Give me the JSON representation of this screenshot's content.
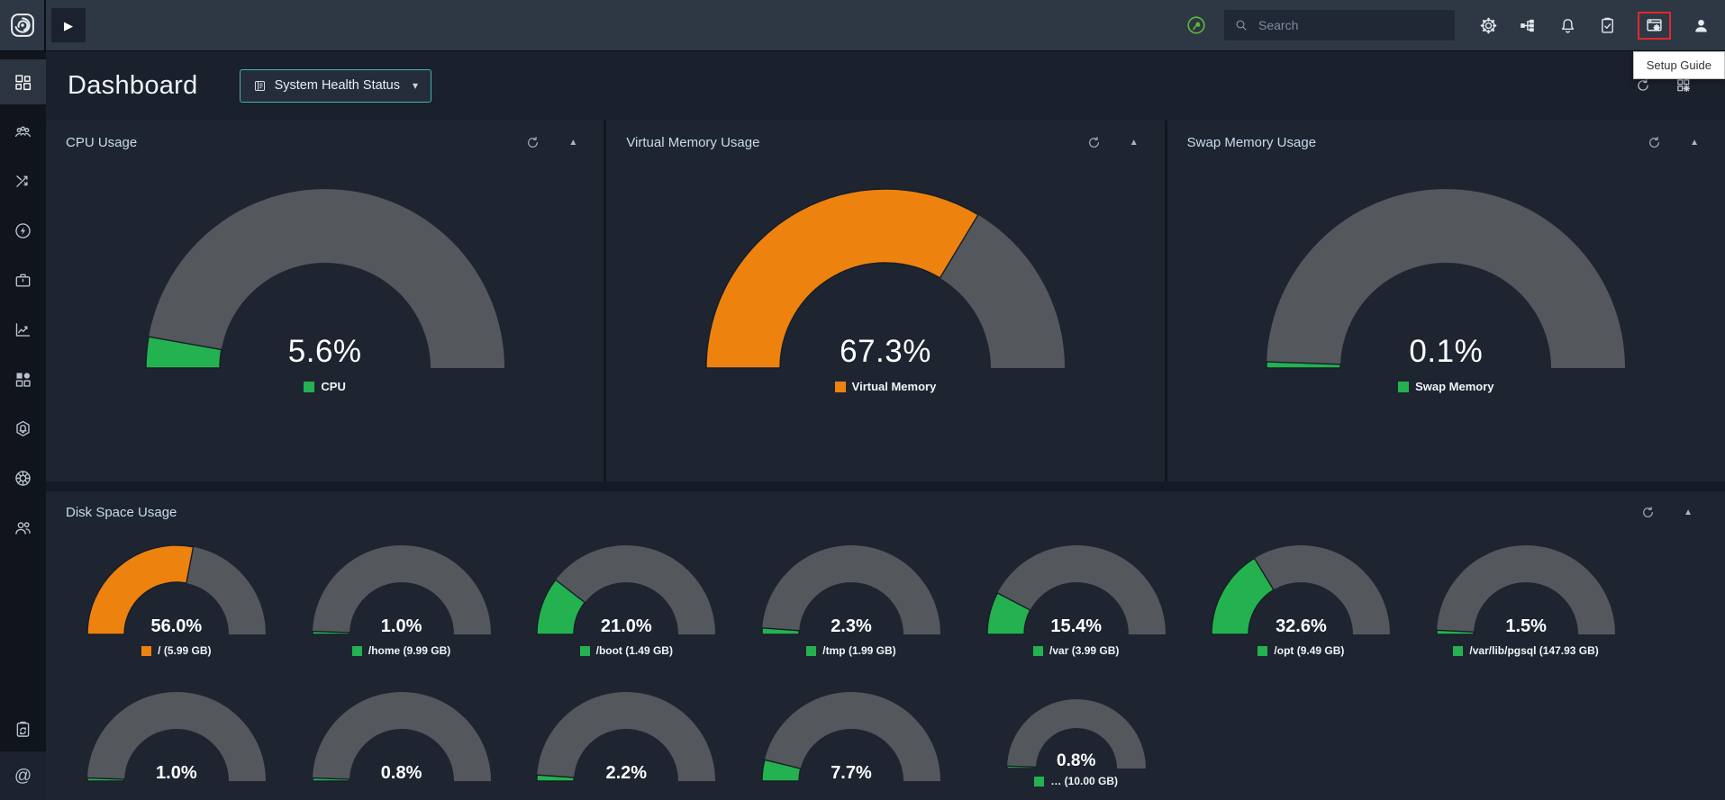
{
  "colors": {
    "green": "#23b24f",
    "orange": "#ed820f",
    "track": "#54575c",
    "accent_teal": "#3eb7b1",
    "highlight_red": "#e3282c"
  },
  "topbar": {
    "logo_icon": "logo-icon",
    "play_icon": "play-icon",
    "eco_icon": "eco-icon",
    "search": {
      "icon": "search-icon",
      "placeholder": "Search",
      "value": ""
    },
    "icons": [
      {
        "name": "settings",
        "icon": "settings-gear-icon"
      },
      {
        "name": "infrastructure",
        "icon": "hierarchy-icon"
      },
      {
        "name": "notifications",
        "icon": "notifications-bell-icon"
      },
      {
        "name": "tasks",
        "icon": "tasks-icon"
      },
      {
        "name": "setup-guide",
        "icon": "setup-guide-icon",
        "highlighted": true
      },
      {
        "name": "user",
        "icon": "user-icon"
      }
    ],
    "tooltip": "Setup Guide"
  },
  "sidebar": {
    "items": [
      {
        "name": "dashboard",
        "icon": "grid-dashboard-icon",
        "active": true
      },
      {
        "name": "monitor-groups",
        "icon": "team-icon"
      },
      {
        "name": "integrations",
        "icon": "shuffle-icon"
      },
      {
        "name": "alarms",
        "icon": "lightning-icon"
      },
      {
        "name": "business-view",
        "icon": "briefcase-icon"
      },
      {
        "name": "reports",
        "icon": "line-chart-icon"
      },
      {
        "name": "widgets",
        "icon": "widgets-icon"
      },
      {
        "name": "alarm-settings",
        "icon": "hexagon-bell-icon"
      },
      {
        "name": "admin",
        "icon": "wheel-icon"
      },
      {
        "name": "user-management",
        "icon": "users-icon"
      }
    ],
    "bottom_items": [
      {
        "name": "audit",
        "icon": "clipboard-sync-icon"
      },
      {
        "name": "support",
        "icon": "at-icon"
      }
    ]
  },
  "header": {
    "title": "Dashboard",
    "view_selector": {
      "icon": "view-icon",
      "label": "System Health Status",
      "caret": "caret-down-icon"
    },
    "actions": [
      {
        "name": "refresh",
        "icon": "refresh-icon"
      },
      {
        "name": "customize-dashboard",
        "icon": "customize-icon"
      }
    ]
  },
  "panels": [
    {
      "title": "CPU Usage",
      "actions": [
        "refresh-icon",
        "collapse-icon"
      ],
      "gauge": {
        "value": "5.6%",
        "pct": 5.6,
        "color": "#23b24f",
        "label": "CPU"
      }
    },
    {
      "title": "Virtual Memory Usage",
      "actions": [
        "refresh-icon",
        "collapse-icon"
      ],
      "gauge": {
        "value": "67.3%",
        "pct": 67.3,
        "color": "#ed820f",
        "label": "Virtual Memory"
      }
    },
    {
      "title": "Swap Memory Usage",
      "actions": [
        "refresh-icon",
        "collapse-icon"
      ],
      "gauge": {
        "value": "0.1%",
        "pct": 0.1,
        "color": "#23b24f",
        "label": "Swap Memory"
      }
    }
  ],
  "disk_panel": {
    "title": "Disk Space Usage",
    "actions": [
      "refresh-icon",
      "collapse-icon"
    ],
    "row1": [
      {
        "value": "56.0%",
        "pct": 56.0,
        "color": "#ed820f",
        "label": "/ (5.99 GB)"
      },
      {
        "value": "1.0%",
        "pct": 1.0,
        "color": "#23b24f",
        "label": "/home (9.99 GB)"
      },
      {
        "value": "21.0%",
        "pct": 21.0,
        "color": "#23b24f",
        "label": "/boot (1.49 GB)"
      },
      {
        "value": "2.3%",
        "pct": 2.3,
        "color": "#23b24f",
        "label": "/tmp (1.99 GB)"
      },
      {
        "value": "15.4%",
        "pct": 15.4,
        "color": "#23b24f",
        "label": "/var (3.99 GB)"
      },
      {
        "value": "32.6%",
        "pct": 32.6,
        "color": "#23b24f",
        "label": "/opt (9.49 GB)"
      },
      {
        "value": "1.5%",
        "pct": 1.5,
        "color": "#23b24f",
        "label": "/var/lib/pgsql (147.93 GB)"
      }
    ],
    "row2": [
      {
        "value": "1.0%",
        "pct": 1.0,
        "color": "#23b24f"
      },
      {
        "value": "0.8%",
        "pct": 0.8,
        "color": "#23b24f"
      },
      {
        "value": "2.2%",
        "pct": 2.2,
        "color": "#23b24f"
      },
      {
        "value": "7.7%",
        "pct": 7.7,
        "color": "#23b24f"
      },
      {
        "value": "0.8%",
        "pct": 0.8,
        "color": "#23b24f",
        "small": true,
        "label": "… (10.00 GB)"
      }
    ]
  }
}
